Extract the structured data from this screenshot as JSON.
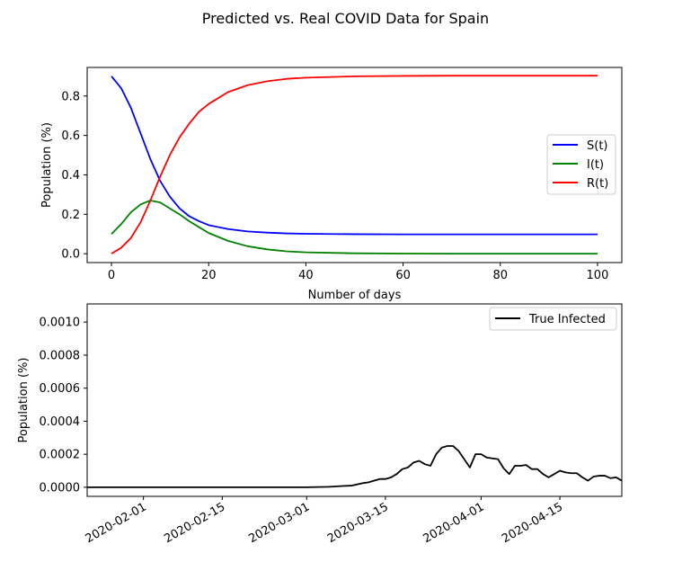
{
  "figure": {
    "title": "Predicted vs. Real COVID Data for Spain"
  },
  "chart_data": [
    {
      "type": "line",
      "title": "",
      "xlabel": "Number of days",
      "ylabel": "Population (%)",
      "xlim": [
        -5,
        105
      ],
      "ylim": [
        -0.045,
        0.945
      ],
      "xticks": [
        0,
        20,
        40,
        60,
        80,
        100
      ],
      "xtick_labels": [
        "0",
        "20",
        "40",
        "60",
        "80",
        "100"
      ],
      "yticks": [
        0.0,
        0.2,
        0.4,
        0.6,
        0.8
      ],
      "ytick_labels": [
        "0.0",
        "0.2",
        "0.4",
        "0.6",
        "0.8"
      ],
      "grid": false,
      "legend_position": "center-right",
      "series": [
        {
          "name": "S(t)",
          "color": "#0000ff",
          "x": [
            0,
            2,
            4,
            6,
            8,
            10,
            12,
            14,
            16,
            18,
            20,
            24,
            28,
            32,
            36,
            40,
            50,
            60,
            70,
            80,
            90,
            100
          ],
          "y": [
            0.9,
            0.84,
            0.74,
            0.61,
            0.48,
            0.37,
            0.29,
            0.23,
            0.19,
            0.165,
            0.145,
            0.125,
            0.113,
            0.107,
            0.103,
            0.101,
            0.099,
            0.098,
            0.098,
            0.098,
            0.098,
            0.098
          ]
        },
        {
          "name": "I(t)",
          "color": "#008000",
          "x": [
            0,
            2,
            4,
            6,
            8,
            10,
            12,
            14,
            16,
            18,
            20,
            24,
            28,
            32,
            36,
            40,
            50,
            60,
            70,
            80,
            90,
            100
          ],
          "y": [
            0.1,
            0.15,
            0.21,
            0.25,
            0.27,
            0.26,
            0.23,
            0.2,
            0.165,
            0.135,
            0.105,
            0.065,
            0.038,
            0.022,
            0.012,
            0.007,
            0.002,
            0.0005,
            0.0001,
            0.0,
            0.0,
            0.0
          ]
        },
        {
          "name": "R(t)",
          "color": "#ff0000",
          "x": [
            0,
            2,
            4,
            6,
            8,
            10,
            12,
            14,
            16,
            18,
            20,
            24,
            28,
            32,
            36,
            40,
            50,
            60,
            70,
            80,
            90,
            100
          ],
          "y": [
            0.0,
            0.03,
            0.08,
            0.16,
            0.27,
            0.39,
            0.5,
            0.59,
            0.66,
            0.72,
            0.76,
            0.82,
            0.855,
            0.875,
            0.887,
            0.893,
            0.9,
            0.902,
            0.903,
            0.903,
            0.903,
            0.903
          ]
        }
      ]
    },
    {
      "type": "line",
      "title": "",
      "xlabel": "",
      "ylabel": "Population (%)",
      "xlim": [
        "2020-01-22",
        "2020-04-26"
      ],
      "ylim": [
        -5.5e-05,
        0.00111
      ],
      "xticks": [
        "2020-02-01",
        "2020-02-15",
        "2020-03-01",
        "2020-03-15",
        "2020-04-01",
        "2020-04-15"
      ],
      "xtick_labels": [
        "2020-02-01",
        "2020-02-15",
        "2020-03-01",
        "2020-03-15",
        "2020-04-01",
        "2020-04-15"
      ],
      "yticks": [
        0.0,
        0.0002,
        0.0004,
        0.0006,
        0.0008,
        0.001
      ],
      "ytick_labels": [
        "0.0000",
        "0.0002",
        "0.0004",
        "0.0006",
        "0.0008",
        "0.0010"
      ],
      "grid": false,
      "legend_position": "top-right",
      "series": [
        {
          "name": "True Infected",
          "color": "#000000",
          "x": [
            "2020-01-22",
            "2020-02-15",
            "2020-03-01",
            "2020-03-05",
            "2020-03-07",
            "2020-03-09",
            "2020-03-11",
            "2020-03-12",
            "2020-03-13",
            "2020-03-14",
            "2020-03-15",
            "2020-03-16",
            "2020-03-17",
            "2020-03-18",
            "2020-03-19",
            "2020-03-20",
            "2020-03-21",
            "2020-03-22",
            "2020-03-23",
            "2020-03-24",
            "2020-03-25",
            "2020-03-26",
            "2020-03-27",
            "2020-03-28",
            "2020-03-29",
            "2020-03-30",
            "2020-03-31",
            "2020-04-01",
            "2020-04-02",
            "2020-04-03",
            "2020-04-04",
            "2020-04-05",
            "2020-04-06",
            "2020-04-07",
            "2020-04-08",
            "2020-04-09",
            "2020-04-10",
            "2020-04-11",
            "2020-04-12",
            "2020-04-13",
            "2020-04-14",
            "2020-04-15",
            "2020-04-16",
            "2020-04-17",
            "2020-04-18",
            "2020-04-19",
            "2020-04-20",
            "2020-04-21",
            "2020-04-22",
            "2020-04-23",
            "2020-04-24",
            "2020-04-25",
            "2020-04-26"
          ],
          "y": [
            0.0,
            0.0,
            0.0,
            3e-06,
            7e-06,
            1e-05,
            2.5e-05,
            3e-05,
            4e-05,
            5e-05,
            5e-05,
            6e-05,
            8e-05,
            0.00011,
            0.00012,
            0.00015,
            0.00016,
            0.00014,
            0.00013,
            0.0002,
            0.00024,
            0.00025,
            0.00025,
            0.00022,
            0.00017,
            0.00012,
            0.0002,
            0.0002,
            0.00018,
            0.000175,
            0.00017,
            0.000115,
            8e-05,
            0.00013,
            0.00013,
            0.000135,
            0.00011,
            0.00011,
            8e-05,
            6e-05,
            8e-05,
            0.0001,
            9e-05,
            8.5e-05,
            8.5e-05,
            6e-05,
            4e-05,
            6.5e-05,
            7e-05,
            7e-05,
            5.5e-05,
            6e-05,
            4e-05
          ]
        }
      ]
    }
  ]
}
